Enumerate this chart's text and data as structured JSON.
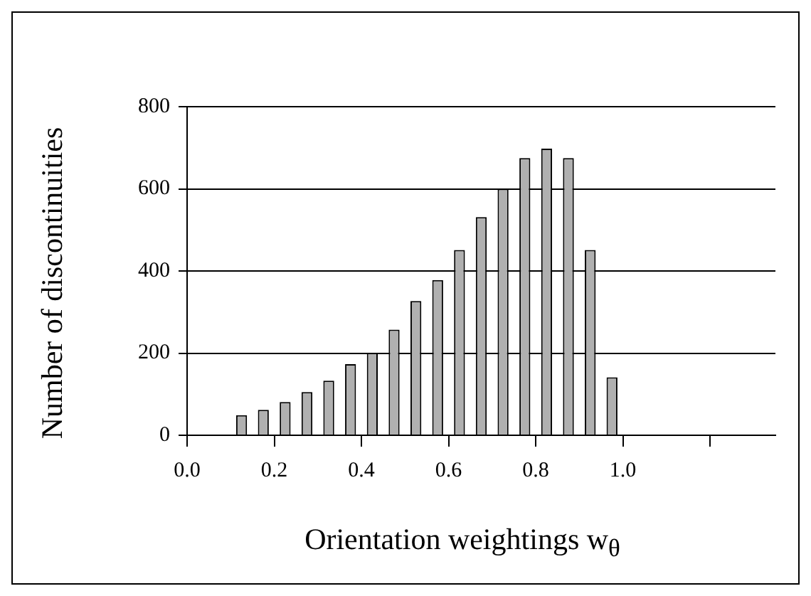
{
  "chart_data": {
    "type": "histogram",
    "xlabel": "Orientation weightings w$_{θ}$",
    "ylabel": "Number of discontinuities",
    "bins": [
      0.1,
      0.15,
      0.2,
      0.25,
      0.3,
      0.35,
      0.4,
      0.45,
      0.5,
      0.55,
      0.6,
      0.65,
      0.7,
      0.75,
      0.8,
      0.85,
      0.9,
      0.95,
      1.0
    ],
    "values": [
      49,
      62,
      81,
      105,
      133,
      173,
      201,
      257,
      327,
      378,
      451,
      531,
      600,
      675,
      698,
      675,
      451,
      141
    ],
    "color": "#b0b0b0",
    "xlim": [
      0,
      1.35
    ],
    "xticks": [
      {
        "value": 0,
        "label": "0.0"
      },
      0.2,
      0.4,
      0.6,
      0.8,
      {
        "value": 1,
        "label": "1.0"
      },
      {
        "value": 1.2,
        "label": null
      }
    ],
    "ylim": [
      0,
      800
    ],
    "yticks": [
      0,
      200,
      400,
      600,
      800
    ],
    "grid": "y",
    "legend": false
  }
}
